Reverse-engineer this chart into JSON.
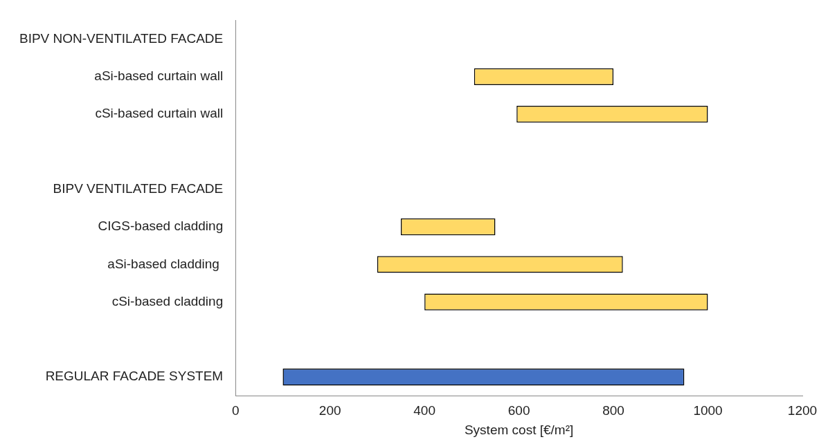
{
  "chart_data": {
    "type": "bar",
    "orientation": "horizontal",
    "xlabel": "System cost [€/m²]",
    "categories": [
      "BIPV NON-VENTILATED FACADE",
      "aSi-based curtain wall",
      "cSi-based curtain wall",
      null,
      "BIPV VENTILATED FACADE",
      "CIGS-based cladding",
      "aSi-based cladding ",
      "cSi-based cladding",
      null,
      "REGULAR FACADE SYSTEM"
    ],
    "base": [
      null,
      505,
      595,
      null,
      null,
      350,
      300,
      400,
      null,
      100
    ],
    "values": [
      null,
      295,
      405,
      null,
      null,
      200,
      520,
      600,
      null,
      850
    ],
    "colors": [
      "#ffd966",
      "#ffd966",
      "#ffd966",
      "#ffd966",
      "#ffd966",
      "#ffd966",
      "#ffd966",
      "#ffd966",
      "#ffd966",
      "#4472c4"
    ],
    "xlim": [
      0,
      1200
    ],
    "xticks": [
      0,
      200,
      400,
      600,
      800,
      1000,
      1200
    ],
    "grid": false
  }
}
